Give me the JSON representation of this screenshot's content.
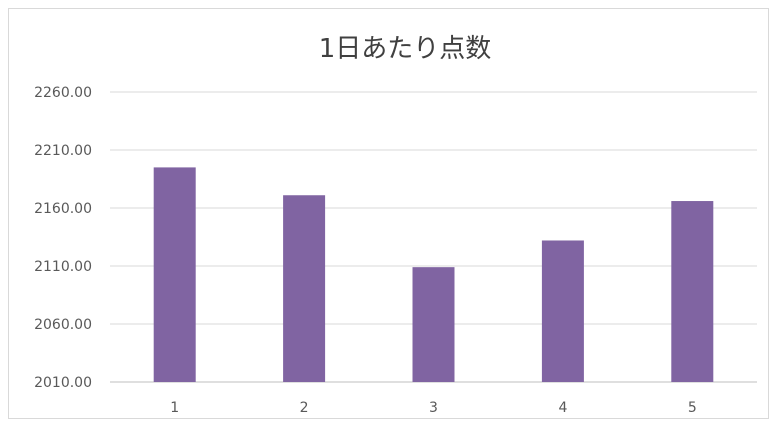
{
  "chart_data": {
    "type": "bar",
    "title": "1日あたり点数",
    "xlabel": "",
    "ylabel": "",
    "categories": [
      "1",
      "2",
      "3",
      "4",
      "5"
    ],
    "values": [
      2195,
      2171,
      2109,
      2132,
      2166
    ],
    "ylim": [
      2010,
      2260
    ],
    "yticks": [
      "2010.00",
      "2060.00",
      "2110.00",
      "2160.00",
      "2210.00",
      "2260.00"
    ],
    "grid": true,
    "legend": "none",
    "bar_color": "#8064a2"
  }
}
